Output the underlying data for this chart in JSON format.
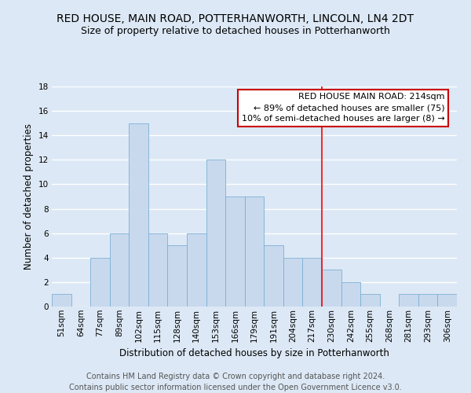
{
  "title": "RED HOUSE, MAIN ROAD, POTTERHANWORTH, LINCOLN, LN4 2DT",
  "subtitle": "Size of property relative to detached houses in Potterhanworth",
  "xlabel": "Distribution of detached houses by size in Potterhanworth",
  "ylabel": "Number of detached properties",
  "footer_line1": "Contains HM Land Registry data © Crown copyright and database right 2024.",
  "footer_line2": "Contains public sector information licensed under the Open Government Licence v3.0.",
  "bin_labels": [
    "51sqm",
    "64sqm",
    "77sqm",
    "89sqm",
    "102sqm",
    "115sqm",
    "128sqm",
    "140sqm",
    "153sqm",
    "166sqm",
    "179sqm",
    "191sqm",
    "204sqm",
    "217sqm",
    "230sqm",
    "242sqm",
    "255sqm",
    "268sqm",
    "281sqm",
    "293sqm",
    "306sqm"
  ],
  "bar_heights": [
    1,
    0,
    4,
    6,
    15,
    6,
    5,
    6,
    12,
    9,
    9,
    5,
    4,
    4,
    3,
    2,
    1,
    0,
    1,
    1,
    1
  ],
  "bar_color": "#c8d9ee",
  "bar_edge_color": "#7bafd4",
  "background_color": "#dce8f5",
  "grid_color": "#ffffff",
  "ref_line_x": 13.5,
  "ref_line_label": "RED HOUSE MAIN ROAD: 214sqm",
  "ref_line_smaller": "← 89% of detached houses are smaller (75)",
  "ref_line_larger": "10% of semi-detached houses are larger (8) →",
  "annotation_box_color": "#cc0000",
  "ylim": [
    0,
    18
  ],
  "yticks": [
    0,
    2,
    4,
    6,
    8,
    10,
    12,
    14,
    16,
    18
  ],
  "title_fontsize": 10,
  "subtitle_fontsize": 9,
  "axis_label_fontsize": 8.5,
  "tick_fontsize": 7.5,
  "footer_fontsize": 7,
  "annot_fontsize": 8
}
